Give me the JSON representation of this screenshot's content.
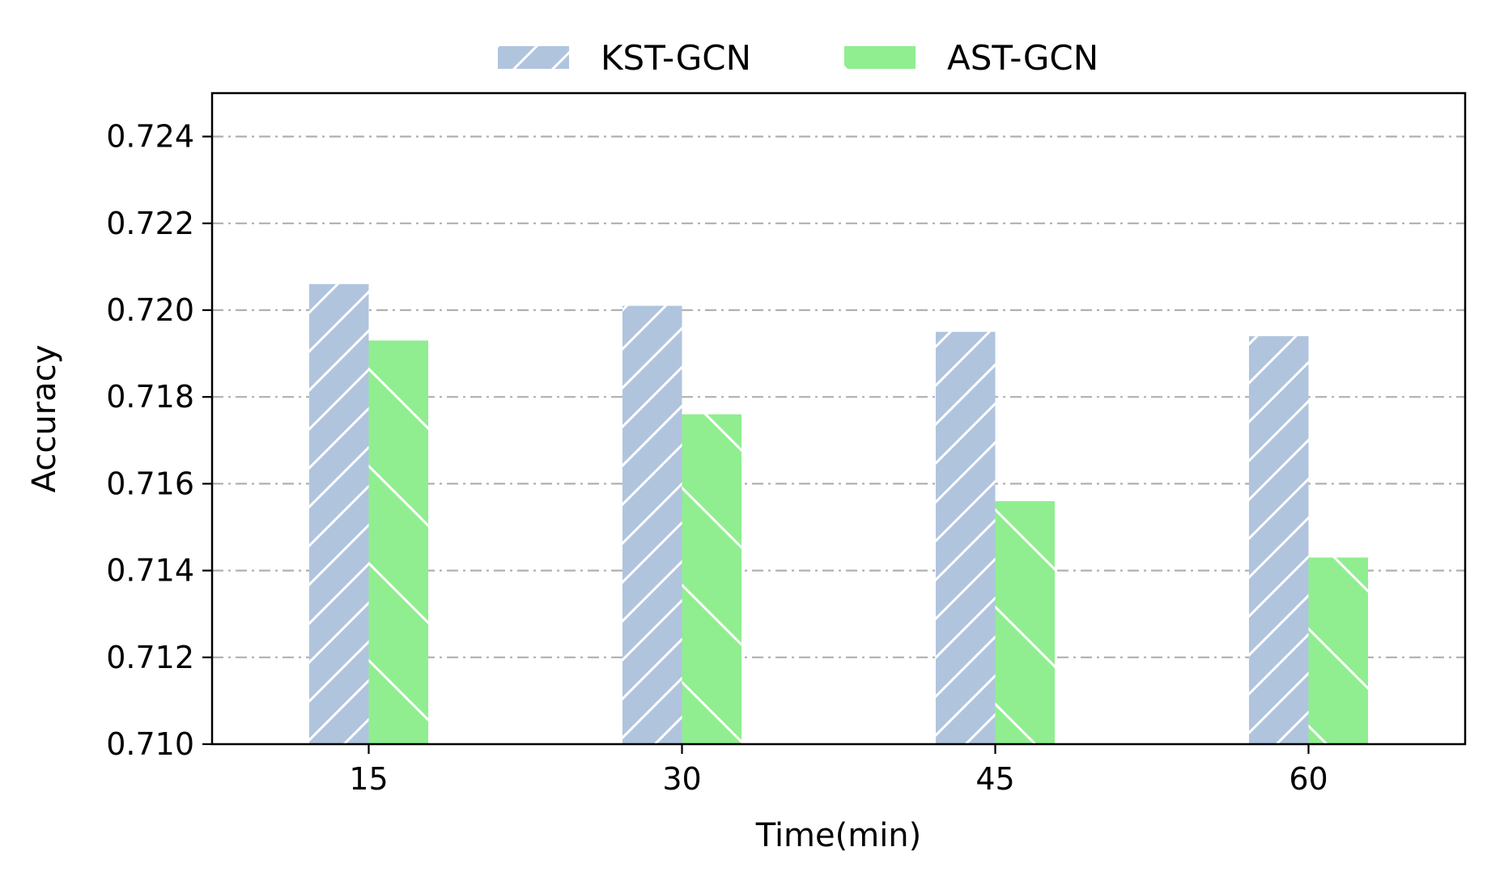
{
  "chart_data": {
    "type": "bar",
    "categories": [
      "15",
      "30",
      "45",
      "60"
    ],
    "series": [
      {
        "name": "KST-GCN",
        "values": [
          0.7206,
          0.7201,
          0.7195,
          0.7194
        ],
        "color": "#b0c4de",
        "hatch": "forward-diagonal"
      },
      {
        "name": "AST-GCN",
        "values": [
          0.7193,
          0.7176,
          0.7156,
          0.7143
        ],
        "color": "#90ee90",
        "hatch": "back-diagonal"
      }
    ],
    "title": "",
    "xlabel": "Time(min)",
    "ylabel": "Accuracy",
    "ylim": [
      0.71,
      0.725
    ],
    "yticks": [
      "0.710",
      "0.712",
      "0.714",
      "0.716",
      "0.718",
      "0.720",
      "0.722",
      "0.724"
    ],
    "grid": "horizontal dash-dot",
    "grid_color": "#b0b0b0",
    "legend_position": "top-center"
  }
}
